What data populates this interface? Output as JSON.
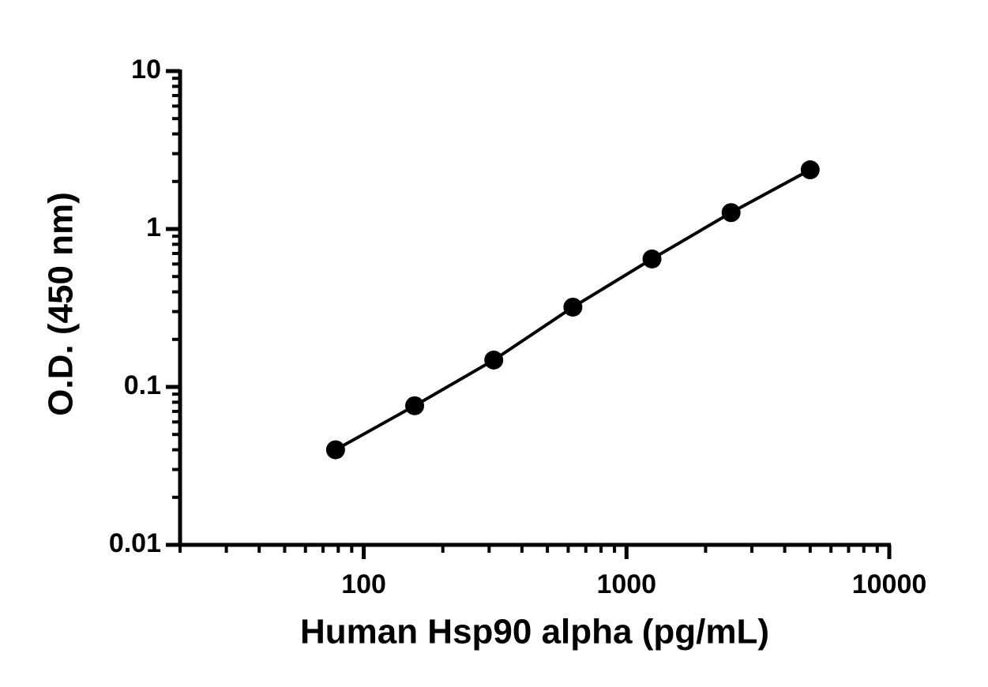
{
  "chart_data": {
    "type": "line",
    "x_label": "Human Hsp90 alpha (pg/mL)",
    "y_label": "O.D. (450 nm)",
    "x": [
      78.125,
      156.25,
      312.5,
      625,
      1250,
      2500,
      5000
    ],
    "series": [
      {
        "color": "#000000",
        "values": [
          0.04,
          0.076,
          0.148,
          0.32,
          0.646,
          1.27,
          2.37
        ]
      }
    ],
    "xlim": [
      20,
      10000
    ],
    "ylim": [
      0.01,
      10
    ],
    "xticks": [
      100,
      1000,
      10000
    ],
    "yticks": [
      0.01,
      0.1,
      1,
      10
    ],
    "xscale": "log",
    "yscale": "log",
    "markers": true
  }
}
